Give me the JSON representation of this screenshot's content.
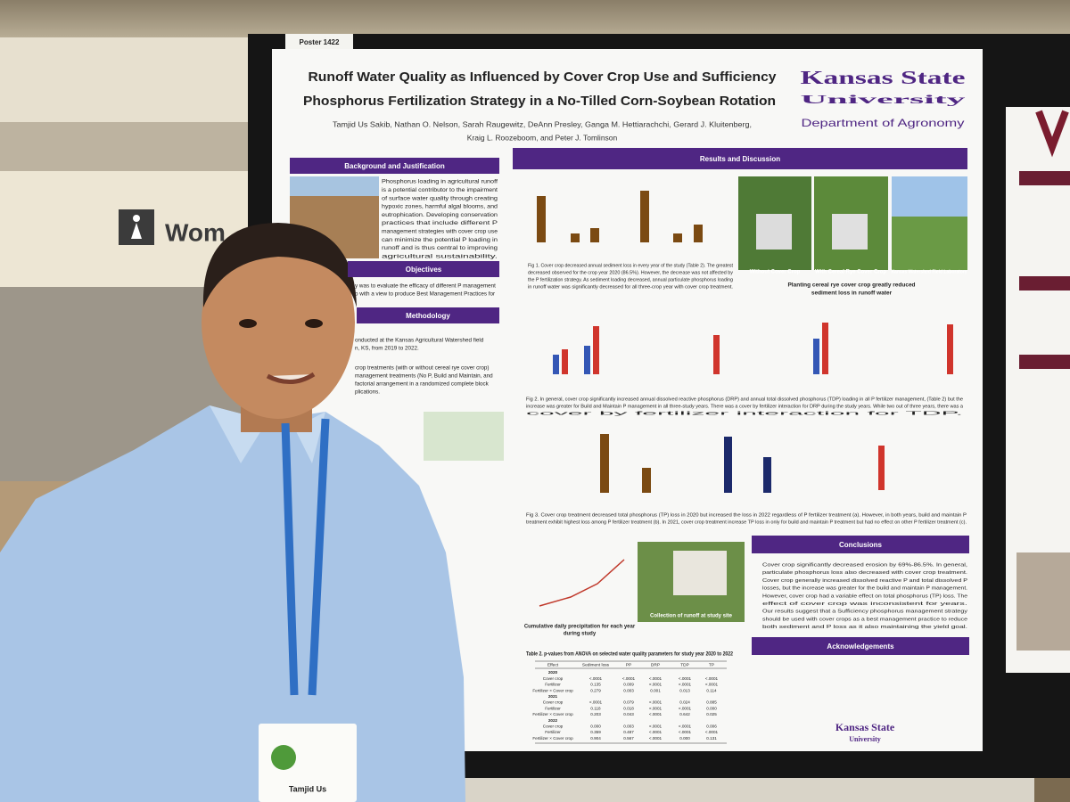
{
  "sign": {
    "poster_number": "Poster 1422",
    "restroom": "Wom"
  },
  "poster": {
    "title": [
      "Runoff Water Quality as Influenced by Cover Crop Use and Sufficiency",
      "Phosphorus Fertilization Strategy in a No-Tilled Corn-Soybean Rotation"
    ],
    "authors": [
      "Tamjid Us Sakib, Nathan O. Nelson, Sarah Raugewitz, DeAnn Presley, Ganga M. Hettiarachchi, Gerard J. Kluitenberg,",
      "Kraig L. Roozeboom, and Peter J. Tomlinson"
    ],
    "logo": {
      "name": [
        "Kansas State",
        "University"
      ],
      "department": "Department of Agronomy"
    },
    "headers": {
      "background": "Background and Justification",
      "objectives": "Objectives",
      "methodology": "Methodology",
      "results": "Results and Discussion",
      "conclusions": "Conclusions",
      "acknowledgements": "Acknowledgements"
    },
    "background_text": [
      "Phosphorus loading in agricultural runoff",
      "is a potential contributor to the impairment",
      "of surface water quality through creating",
      "hypoxic zones, harmful algal blooms, and",
      "eutrophication. Developing conservation",
      "practices that include different P",
      "management strategies with cover crop use",
      "can minimize the potential P loading in",
      "runoff and is thus central to improving",
      "agricultural sustainability."
    ],
    "objectives_text": [
      "y was to evaluate the efficacy of different P management",
      "o with a view to produce Best Management Practices for"
    ],
    "methodology_text": [
      "onducted at the Kansas Agricultural Watershed field",
      "n, KS, from 2019 to 2022.",
      "crop treatments (with or without cereal rye cover crop)",
      "management treatments (No P, Build and Maintain, and",
      "factorial arrangement in a randomized complete block",
      "plications."
    ],
    "photo_captions": [
      "Without Cover Crop",
      "With Cereal Rye Cover Crop",
      "Kansas Watershed Field Laboratory"
    ],
    "photo_note": [
      "Planting cereal rye cover crop greatly reduced",
      "sediment loss in runoff water"
    ],
    "fig1": [
      "Fig 1. Cover crop decreased annual sediment loss in every year of the study (Table 2). The greatest",
      "decreased observed for the crop year 2020 (86.5%). However, the decrease was not affected by",
      "the P fertilization strategy. As sediment loading decreased, annual particulate phosphorus loading",
      "in runoff water was significantly decreased for all three-crop year with cover crop treatment."
    ],
    "fig2": [
      "Fig 2. In general, cover crop significantly increased annual dissolved reactive phosphorus (DRP) and annual total dissolved phosphorus (TDP) loading in all P fertilizer management, (Table 2) but the",
      "increase was greater for Build and Maintain P management in all three-study years. There was a cover by fertilizer interaction for DRP during the study years. While two out of three years, there was a",
      "cover by fertilizer interaction for TDP."
    ],
    "fig3": [
      "Fig 3. Cover crop treatment decreased total phosphorus (TP) loss in 2020 but increased the loss in 2022 regardless of P fertilizer treatment (a). However, in both years, build and maintain P",
      "treatment exhibit highest loss among P fertilizer treatment (b). In 2021, cover crop treatment increase TP loss in only for build and maintain P treatment but had no effect on other P fertilizer treatment (c)."
    ],
    "runoff_caption": "Collection of runoff at study site",
    "precip_caption": [
      "Cumulative daily precipitation for each year",
      "during study"
    ],
    "conclusions": [
      "Cover crop significantly decreased erosion by 69%-86.5%. In general,",
      "particulate phosphorus loss also decreased with cover crop treatment.",
      "Cover crop generally increased dissolved reactive P and total dissolved P",
      "losses, but the increase was greater for the build and maintain P management.",
      "However, cover crop had a variable effect on total phosphorus (TP) loss. The",
      "effect of cover crop was inconsistent for years.",
      "Our results suggest that a Sufficiency phosphorus management strategy",
      "should be used with cover crops as a best management practice to reduce",
      "both sediment and P loss as it also maintaining the yield goal."
    ],
    "table_title": "Table 2. p-values from ANOVA on selected water quality parameters for study year 2020 to 2022",
    "table": {
      "header": [
        "Effect",
        "Sediment loss",
        "PP",
        "DRP",
        "TDP",
        "TP"
      ],
      "rows": [
        [
          "2020"
        ],
        [
          "Cover crop",
          "<.0001",
          "<.0001",
          "<.0001",
          "<.0001",
          "<.0001"
        ],
        [
          "Fertilizer",
          "0.135",
          "0.009",
          "<.0001",
          "<.0001",
          "<.0001"
        ],
        [
          "Fertilizer × Cover crop",
          "0.279",
          "0.003",
          "0.001",
          "0.013",
          "0.114"
        ],
        [
          "2021"
        ],
        [
          "Cover crop",
          "<.0001",
          "0.079",
          "<.0001",
          "0.024",
          "0.885"
        ],
        [
          "Fertilizer",
          "0.118",
          "0.018",
          "<.0001",
          "<.0001",
          "0.000"
        ],
        [
          "Fertilizer × Cover crop",
          "0.203",
          "0.043",
          "<.0001",
          "0.642",
          "0.025"
        ],
        [
          "2022"
        ],
        [
          "Cover crop",
          "0.000",
          "0.003",
          "<.0001",
          "<.0001",
          "0.006"
        ],
        [
          "Fertilizer",
          "0.359",
          "0.487",
          "<.0001",
          "<.0001",
          "<.0001"
        ],
        [
          "Fertilizer × Cover crop",
          "0.904",
          "0.567",
          "<.0001",
          "0.000",
          "0.131"
        ]
      ]
    },
    "ack_footer": [
      "Kansas State",
      "University"
    ]
  },
  "badge": {
    "name": "Tamjid Us"
  }
}
